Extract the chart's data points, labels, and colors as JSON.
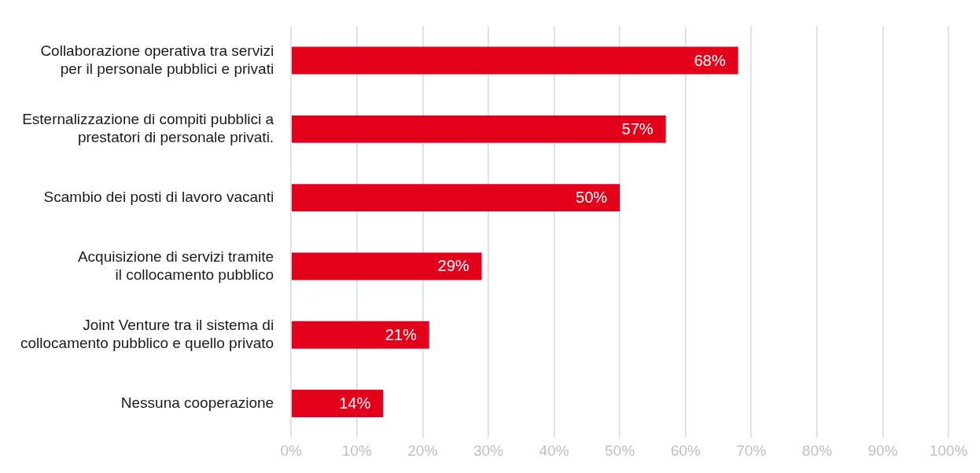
{
  "chart_data": {
    "type": "bar",
    "orientation": "horizontal",
    "categories": [
      "Collaborazione operativa tra servizi\nper il personale pubblici e privati",
      "Esternalizzazione di compiti pubblici a\nprestatori di personale privati.",
      "Scambio dei posti di lavoro vacanti",
      "Acquisizione di servizi tramite\nil collocamento pubblico",
      "Joint Venture tra il sistema di\ncollocamento pubblico e quello privato",
      "Nessuna cooperazione"
    ],
    "values": [
      68,
      57,
      50,
      29,
      21,
      14
    ],
    "value_labels": [
      "68%",
      "57%",
      "50%",
      "29%",
      "21%",
      "14%"
    ],
    "color": "#e2001a",
    "xlim": [
      0,
      100
    ],
    "xticks": [
      {
        "value": 0,
        "label": "0%"
      },
      {
        "value": 10,
        "label": "10%"
      },
      {
        "value": 20,
        "label": "20%"
      },
      {
        "value": 30,
        "label": "30%"
      },
      {
        "value": 40,
        "label": "40%"
      },
      {
        "value": 50,
        "label": "50%"
      },
      {
        "value": 60,
        "label": "60%"
      },
      {
        "value": 70,
        "label": "70%"
      },
      {
        "value": 80,
        "label": "80%"
      },
      {
        "value": 90,
        "label": "90%"
      },
      {
        "value": 100,
        "label": "100%"
      }
    ],
    "grid": "x"
  }
}
